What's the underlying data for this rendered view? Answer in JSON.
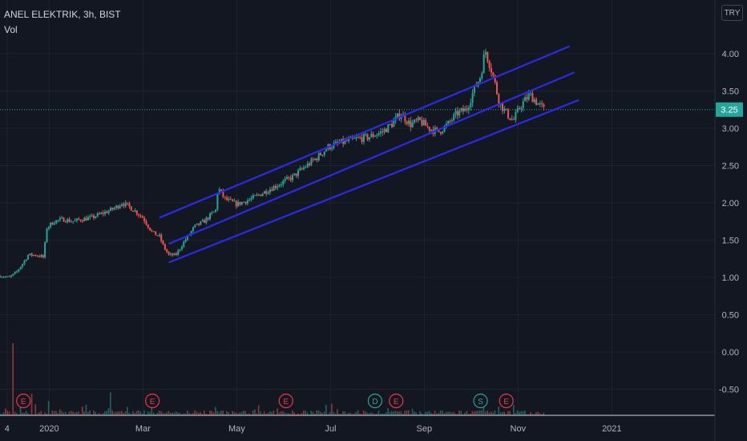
{
  "header": {
    "title": "ANEL ELEKTRIK, 3h, BIST",
    "volume_label": "Vol",
    "currency": "TRY"
  },
  "colors": {
    "background": "#131722",
    "up": "#26a69a",
    "down": "#ef5350",
    "channel": "#2a2ae8",
    "price_line": "#26a69a",
    "text": "#d1d4dc",
    "axis_text": "#b2b5be"
  },
  "chart_data": {
    "type": "candlestick",
    "title": "ANEL ELEKTRIK, 3h, BIST",
    "last_price": 3.25,
    "last_price_label": "3.25",
    "y_ticks": [
      "4.00",
      "3.50",
      "3.00",
      "2.50",
      "2.00",
      "1.50",
      "1.00",
      "0.50",
      "0.00",
      "-0.50"
    ],
    "ylim": [
      -0.85,
      4.72
    ],
    "x_ticks": [
      "4",
      "2020",
      "Mar",
      "May",
      "Jul",
      "Sep",
      "Nov",
      "2021"
    ],
    "x_tick_months": [
      -0.9,
      0,
      2,
      4,
      6,
      8,
      10,
      12
    ],
    "xlim_months": [
      -1.05,
      14.2
    ],
    "price_path": [
      [
        -1.05,
        1.02
      ],
      [
        -0.85,
        1.0
      ],
      [
        -0.7,
        1.07
      ],
      [
        -0.55,
        1.2
      ],
      [
        -0.45,
        1.3
      ],
      [
        -0.3,
        1.3
      ],
      [
        -0.15,
        1.28
      ],
      [
        -0.1,
        1.25
      ],
      [
        -0.08,
        1.65
      ],
      [
        0.1,
        1.75
      ],
      [
        0.3,
        1.78
      ],
      [
        0.5,
        1.75
      ],
      [
        0.7,
        1.78
      ],
      [
        0.9,
        1.8
      ],
      [
        1.1,
        1.85
      ],
      [
        1.3,
        1.9
      ],
      [
        1.45,
        1.95
      ],
      [
        1.55,
        2.0
      ],
      [
        1.7,
        1.95
      ],
      [
        1.85,
        1.88
      ],
      [
        2.0,
        1.8
      ],
      [
        2.1,
        1.7
      ],
      [
        2.2,
        1.6
      ],
      [
        2.35,
        1.55
      ],
      [
        2.45,
        1.4
      ],
      [
        2.55,
        1.3
      ],
      [
        2.7,
        1.3
      ],
      [
        2.9,
        1.5
      ],
      [
        3.1,
        1.68
      ],
      [
        3.3,
        1.75
      ],
      [
        3.55,
        1.9
      ],
      [
        3.6,
        2.2
      ],
      [
        3.75,
        2.05
      ],
      [
        4.0,
        1.98
      ],
      [
        4.3,
        2.05
      ],
      [
        4.6,
        2.15
      ],
      [
        4.9,
        2.25
      ],
      [
        5.2,
        2.35
      ],
      [
        5.45,
        2.48
      ],
      [
        5.7,
        2.6
      ],
      [
        5.95,
        2.75
      ],
      [
        6.2,
        2.8
      ],
      [
        6.5,
        2.85
      ],
      [
        6.8,
        2.88
      ],
      [
        7.1,
        2.95
      ],
      [
        7.3,
        3.05
      ],
      [
        7.5,
        3.2
      ],
      [
        7.7,
        3.05
      ],
      [
        7.9,
        3.1
      ],
      [
        8.1,
        3.0
      ],
      [
        8.3,
        2.95
      ],
      [
        8.5,
        3.05
      ],
      [
        8.7,
        3.2
      ],
      [
        8.9,
        3.25
      ],
      [
        9.05,
        3.5
      ],
      [
        9.2,
        3.7
      ],
      [
        9.3,
        4.05
      ],
      [
        9.45,
        3.75
      ],
      [
        9.6,
        3.35
      ],
      [
        9.75,
        3.2
      ],
      [
        9.9,
        3.1
      ],
      [
        10.05,
        3.3
      ],
      [
        10.25,
        3.45
      ],
      [
        10.4,
        3.35
      ],
      [
        10.55,
        3.25
      ]
    ],
    "volume_spikes": [
      [
        -0.75,
        0.5
      ],
      [
        -0.6,
        0.12
      ],
      [
        -0.35,
        0.15
      ],
      [
        0.0,
        0.1
      ],
      [
        0.7,
        0.06
      ],
      [
        1.3,
        0.16
      ],
      [
        2.2,
        0.08
      ],
      [
        3.6,
        0.03
      ],
      [
        4.4,
        0.04
      ],
      [
        5.5,
        0.02
      ],
      [
        6.05,
        0.08
      ],
      [
        7.25,
        0.05
      ],
      [
        8.6,
        0.02
      ],
      [
        9.25,
        0.1
      ],
      [
        9.8,
        0.03
      ]
    ],
    "events": [
      {
        "label": "E",
        "month": -0.55,
        "kind": "earnings"
      },
      {
        "label": "E",
        "month": 2.2,
        "kind": "earnings"
      },
      {
        "label": "E",
        "month": 5.05,
        "kind": "earnings"
      },
      {
        "label": "D",
        "month": 6.95,
        "kind": "dividend"
      },
      {
        "label": "E",
        "month": 7.4,
        "kind": "earnings"
      },
      {
        "label": "S",
        "month": 9.2,
        "kind": "split"
      },
      {
        "label": "E",
        "month": 9.75,
        "kind": "earnings"
      }
    ],
    "channel_lines": [
      {
        "from": [
          2.35,
          1.8
        ],
        "to": [
          11.1,
          4.1
        ]
      },
      {
        "from": [
          2.55,
          1.45
        ],
        "to": [
          11.2,
          3.75
        ]
      },
      {
        "from": [
          2.55,
          1.2
        ],
        "to": [
          11.3,
          3.38
        ]
      }
    ],
    "grid": true
  }
}
